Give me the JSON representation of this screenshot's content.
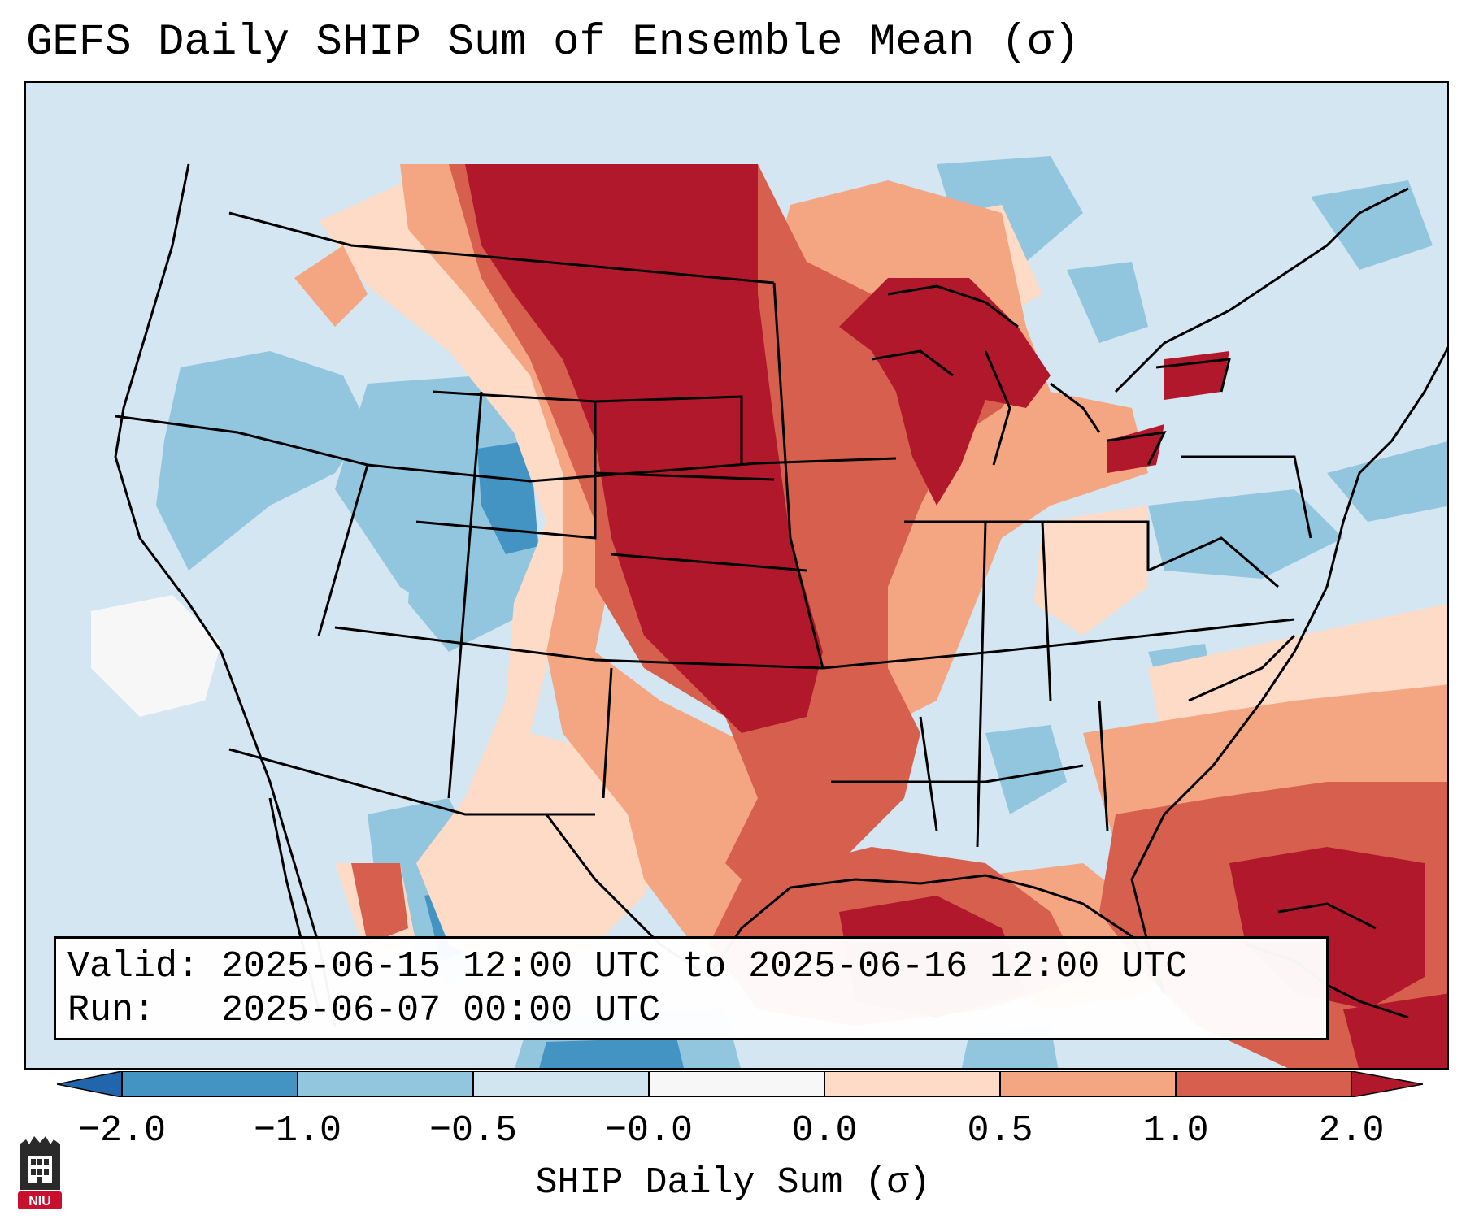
{
  "title": "GEFS Daily SHIP Sum of Ensemble Mean (σ)",
  "info": {
    "valid": "Valid: 2025-06-15 12:00 UTC to 2025-06-16 12:00 UTC",
    "run": "Run:   2025-06-07 00:00 UTC"
  },
  "colorbar": {
    "label": "SHIP Daily Sum (σ)",
    "ticks": [
      "−2.0",
      "−1.0",
      "−0.5",
      "−0.0",
      "0.0",
      "0.5",
      "1.0",
      "2.0"
    ],
    "bins": [
      {
        "range": "-2.0 to -1.0",
        "color": "#4393c3"
      },
      {
        "range": "-1.0 to -0.5",
        "color": "#92c5de"
      },
      {
        "range": "-0.5 to -0.0",
        "color": "#d1e5f0"
      },
      {
        "range": "-0.0 to 0.0",
        "color": "#f7f7f7"
      },
      {
        "range": "0.0 to 0.5",
        "color": "#fddbc7"
      },
      {
        "range": "0.5 to 1.0",
        "color": "#f4a582"
      },
      {
        "range": "1.0 to 2.0",
        "color": "#d6604d"
      }
    ],
    "extend_low_color": "#2166ac",
    "extend_high_color": "#b2182b"
  },
  "logo": {
    "text": "NIU",
    "color": "#c8102e"
  }
}
